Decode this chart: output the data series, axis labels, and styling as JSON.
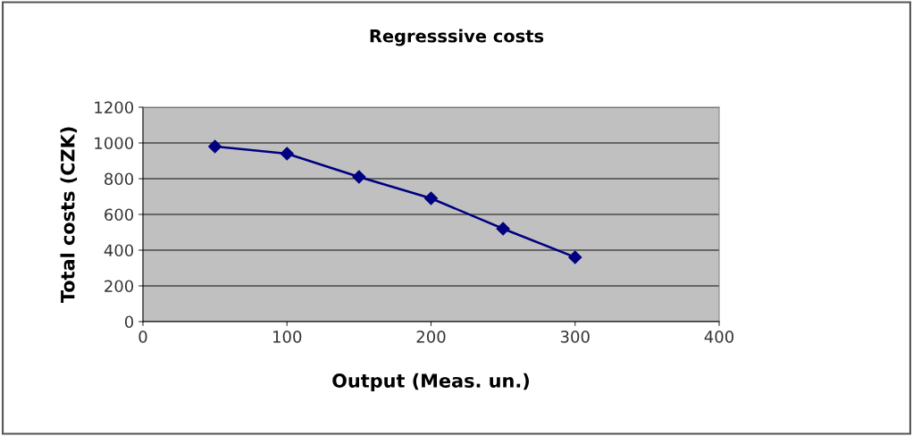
{
  "chart_data": {
    "type": "line",
    "title": "Regresssive costs",
    "xlabel": "Output (Meas. un.)",
    "ylabel": "Total costs (CZK)",
    "x": [
      50,
      100,
      150,
      200,
      250,
      300
    ],
    "series": [
      {
        "color": "#000080",
        "values": [
          980,
          940,
          810,
          690,
          520,
          360
        ]
      }
    ],
    "xlim": [
      0,
      400
    ],
    "xticks": [
      0,
      100,
      200,
      300,
      400
    ],
    "ylim": [
      0,
      1200
    ],
    "yticks": [
      0,
      200,
      400,
      600,
      800,
      1000,
      1200
    ],
    "grid": "y",
    "marker": "diamond",
    "line_style": "solid",
    "legend": false
  }
}
